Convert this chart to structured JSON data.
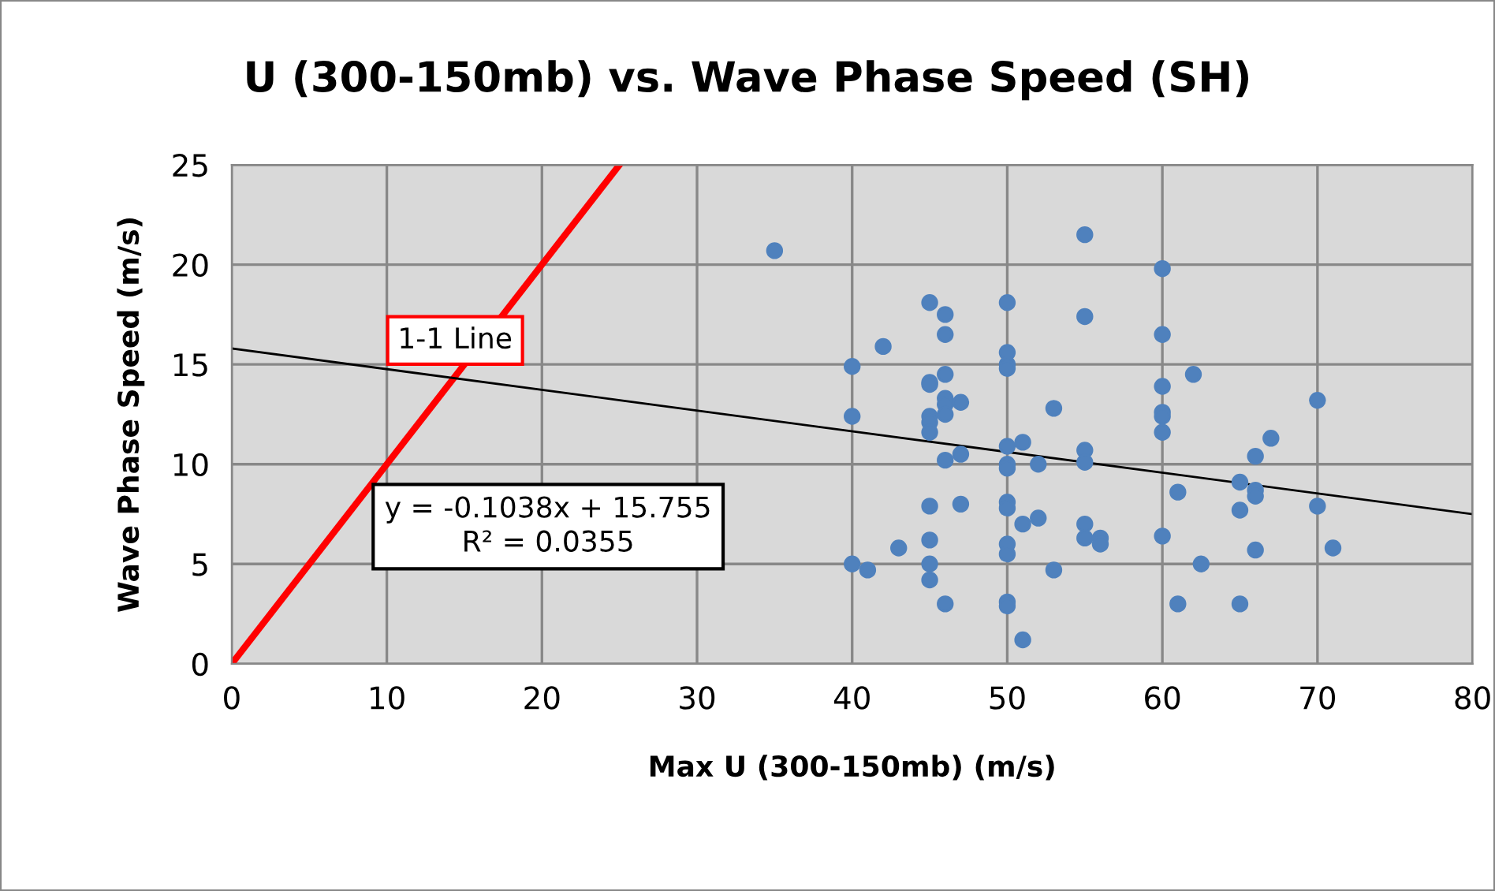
{
  "chart_data": {
    "type": "scatter",
    "title": "U (300-150mb) vs. Wave Phase Speed (SH)",
    "xlabel": "Max U (300-150mb) (m/s)",
    "ylabel": "Wave Phase Speed (m/s)",
    "xlim": [
      0,
      80
    ],
    "ylim": [
      0,
      25
    ],
    "xticks": [
      0,
      10,
      20,
      30,
      40,
      50,
      60,
      70,
      80
    ],
    "yticks": [
      0,
      5,
      10,
      15,
      20,
      25
    ],
    "grid": true,
    "legend": false,
    "series": [
      {
        "color": "#4f81bd",
        "marker": "circle",
        "x": [
          35,
          40,
          40,
          40,
          41,
          42,
          43,
          45,
          45,
          45,
          45,
          45,
          45,
          45,
          45,
          45,
          45,
          46,
          46,
          46,
          46,
          46,
          46,
          46,
          46,
          47,
          47,
          47,
          50,
          50,
          50,
          50,
          50,
          50,
          50,
          50,
          50,
          50,
          50,
          50,
          50,
          51,
          51,
          51,
          52,
          52,
          53,
          53,
          55,
          55,
          55,
          55,
          55,
          55,
          56,
          56,
          60,
          60,
          60,
          60,
          60,
          60,
          60,
          61,
          61,
          62,
          62.5,
          65,
          65,
          65,
          66,
          66,
          66,
          66,
          67,
          70,
          70,
          71
        ],
        "values": [
          20.7,
          14.9,
          12.4,
          5.0,
          4.7,
          15.9,
          5.8,
          18.1,
          14.1,
          14.0,
          12.4,
          12.1,
          11.6,
          7.9,
          6.2,
          5.0,
          4.2,
          17.5,
          16.5,
          14.5,
          13.3,
          13.0,
          12.5,
          10.2,
          3.0,
          13.1,
          10.5,
          8.0,
          18.1,
          15.6,
          15.0,
          14.8,
          10.9,
          10.0,
          9.8,
          8.1,
          7.8,
          6.0,
          5.5,
          3.1,
          2.9,
          11.1,
          7.0,
          1.2,
          10.0,
          7.3,
          12.8,
          4.7,
          21.5,
          17.4,
          10.7,
          10.1,
          7.0,
          6.3,
          6.3,
          6.0,
          19.8,
          16.5,
          13.9,
          12.6,
          12.4,
          11.6,
          6.4,
          8.6,
          3.0,
          14.5,
          5.0,
          9.1,
          7.7,
          3.0,
          10.4,
          8.7,
          8.4,
          5.7,
          11.3,
          13.2,
          7.9,
          5.8
        ]
      },
      {
        "type": "line",
        "color": "#ff0000",
        "marker": "none",
        "line_style": "solid",
        "x": [
          0,
          25
        ],
        "values": [
          0,
          25
        ]
      },
      {
        "type": "line",
        "color": "#000000",
        "marker": "none",
        "line_style": "solid",
        "x": [
          0,
          80
        ],
        "values": [
          15.8,
          7.5
        ]
      }
    ],
    "annotations": [
      {
        "text": "1-1 Line",
        "x": 15,
        "y": 15
      },
      "y = -0.1038x + 15.755\nR² = 0.0355"
    ]
  }
}
